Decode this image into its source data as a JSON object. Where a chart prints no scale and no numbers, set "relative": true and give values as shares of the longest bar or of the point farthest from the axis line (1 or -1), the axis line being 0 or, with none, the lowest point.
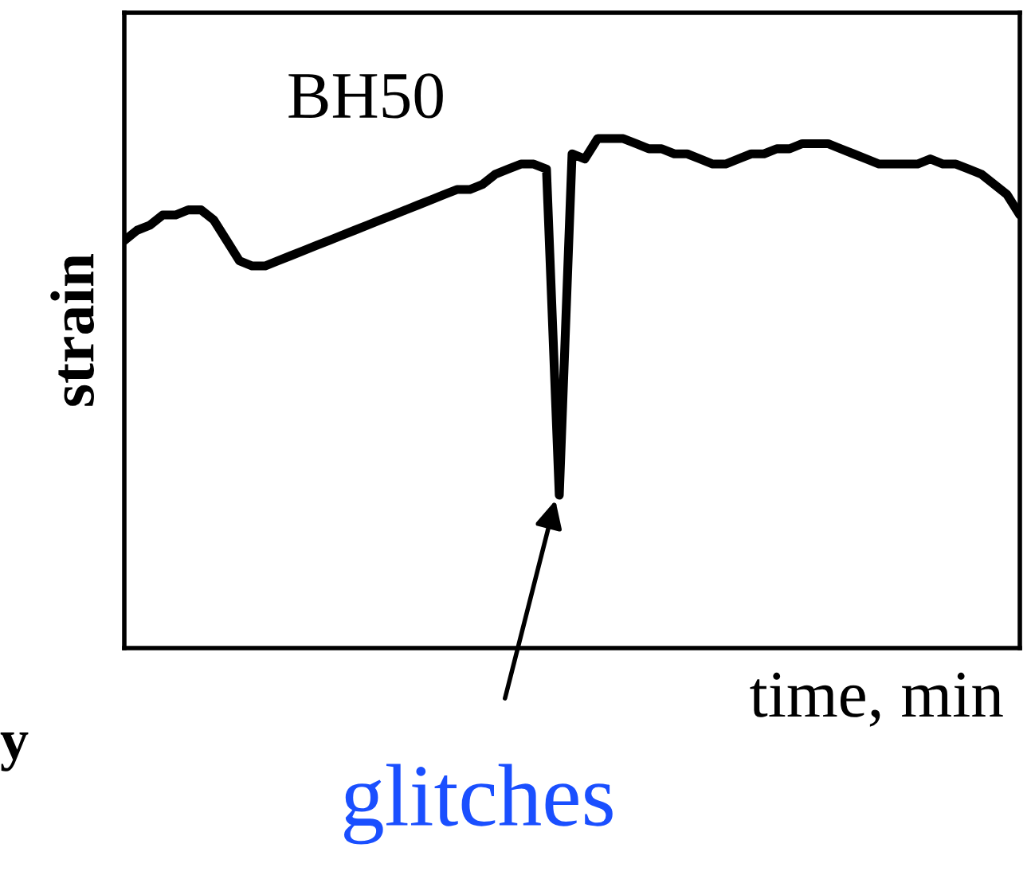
{
  "chart_data": {
    "type": "line",
    "relative": true,
    "ylabel": "strain",
    "xlabel": "time, min",
    "annotations": [
      "BH50",
      "glitches",
      "y"
    ],
    "categories": [
      null,
      null,
      null,
      null,
      null,
      null,
      null,
      null,
      null,
      null,
      null,
      null,
      null,
      null,
      null,
      null,
      null,
      null,
      null,
      null,
      null,
      null,
      null,
      null,
      null,
      null,
      null,
      null,
      null,
      null,
      null,
      null,
      null,
      null,
      null,
      null,
      null,
      null,
      null,
      null,
      null,
      null,
      null,
      null,
      null,
      null,
      null,
      null,
      null,
      null,
      null,
      null,
      null,
      null,
      null,
      null,
      null,
      null,
      null,
      null,
      null,
      null,
      null,
      null,
      null,
      null,
      null,
      null,
      null,
      null,
      null
    ],
    "series": [
      {
        "color": "#000000",
        "values": [
          0.8,
          0.82,
          0.83,
          0.85,
          0.85,
          0.86,
          0.86,
          0.84,
          0.8,
          0.76,
          0.75,
          0.75,
          0.76,
          0.77,
          0.78,
          0.79,
          0.8,
          0.81,
          0.82,
          0.83,
          0.84,
          0.85,
          0.86,
          0.87,
          0.88,
          0.89,
          0.9,
          0.9,
          0.91,
          0.93,
          0.94,
          0.95,
          0.95,
          0.94,
          0.3,
          0.97,
          0.96,
          1.0,
          1.0,
          1.0,
          0.99,
          0.98,
          0.98,
          0.97,
          0.97,
          0.96,
          0.95,
          0.95,
          0.96,
          0.97,
          0.97,
          0.98,
          0.98,
          0.99,
          0.99,
          0.99,
          0.98,
          0.97,
          0.96,
          0.95,
          0.95,
          0.95,
          0.95,
          0.96,
          0.95,
          0.95,
          0.94,
          0.93,
          0.91,
          0.89,
          0.85
        ]
      }
    ],
    "tick_labels": false
  }
}
